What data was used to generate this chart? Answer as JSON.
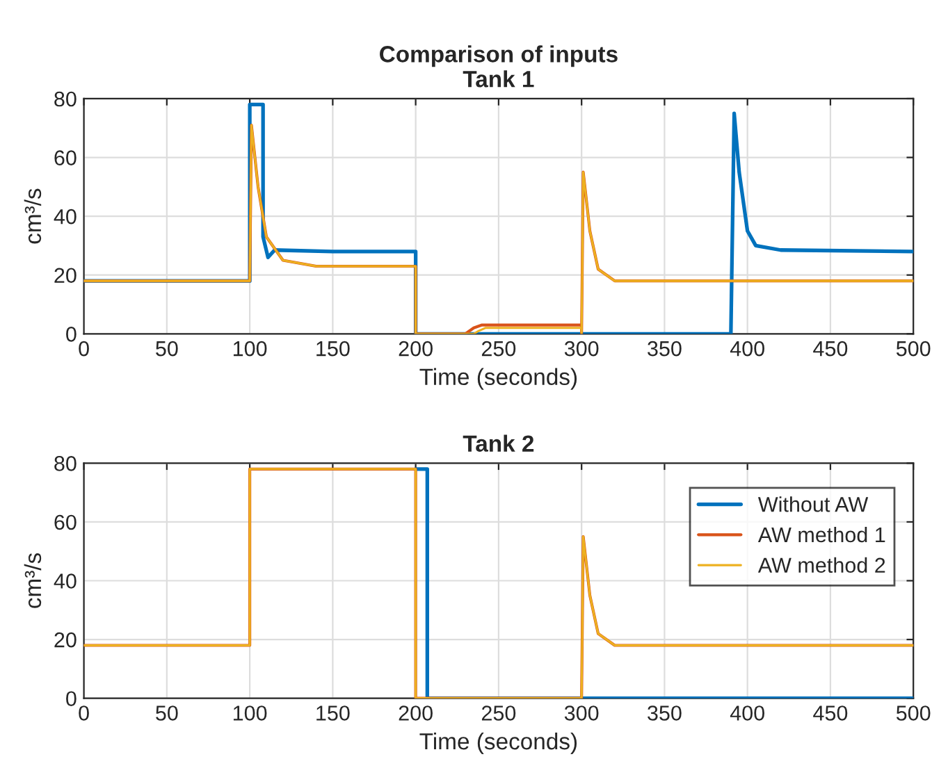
{
  "chart_data": [
    {
      "type": "line",
      "title": "Comparison of inputs",
      "subtitle": "Tank 1",
      "xlabel": "Time (seconds)",
      "ylabel": "cm³/s",
      "xlim": [
        0,
        500
      ],
      "ylim": [
        0,
        80
      ],
      "xticks": [
        0,
        50,
        100,
        150,
        200,
        250,
        300,
        350,
        400,
        450,
        500
      ],
      "yticks": [
        0,
        20,
        40,
        60,
        80
      ],
      "grid": true,
      "legend": false,
      "series": [
        {
          "color": "#0072bd",
          "x": [
            0,
            100,
            100,
            108,
            108,
            111,
            115,
            150,
            200,
            200,
            390,
            392,
            395,
            400,
            405,
            420,
            500
          ],
          "values": [
            18,
            18,
            78,
            78,
            33,
            26,
            28.5,
            28,
            28,
            0,
            0,
            75,
            55,
            35,
            30,
            28.5,
            28
          ]
        },
        {
          "color": "#d95319",
          "x": [
            0,
            100,
            101,
            105,
            110,
            120,
            140,
            200,
            200,
            230,
            235,
            240,
            300,
            300,
            301,
            305,
            310,
            320,
            500
          ],
          "values": [
            18,
            18,
            71,
            50,
            33,
            25,
            23,
            23,
            0,
            0,
            2,
            3,
            3,
            0,
            55,
            35,
            22,
            18,
            18
          ]
        },
        {
          "color": "#edb120",
          "x": [
            0,
            100,
            101,
            105,
            110,
            120,
            140,
            200,
            200,
            235,
            238,
            242,
            300,
            300,
            301,
            305,
            310,
            320,
            500
          ],
          "values": [
            18,
            18,
            71,
            50,
            33,
            25,
            23,
            23,
            0,
            0,
            1,
            2,
            2,
            0,
            55,
            35,
            22,
            18,
            18
          ]
        }
      ]
    },
    {
      "type": "line",
      "title": "Tank 2",
      "xlabel": "Time (seconds)",
      "ylabel": "cm³/s",
      "xlim": [
        0,
        500
      ],
      "ylim": [
        0,
        80
      ],
      "xticks": [
        0,
        50,
        100,
        150,
        200,
        250,
        300,
        350,
        400,
        450,
        500
      ],
      "yticks": [
        0,
        20,
        40,
        60,
        80
      ],
      "grid": true,
      "legend": "top right",
      "series": [
        {
          "name": "Without AW",
          "color": "#0072bd",
          "x": [
            200,
            207,
            207,
            300,
            500
          ],
          "values": [
            78,
            78,
            0,
            0,
            0
          ]
        },
        {
          "name": "AW method 1",
          "color": "#d95319",
          "x": [
            0,
            100,
            100,
            200,
            200,
            300,
            301,
            305,
            310,
            320,
            500
          ],
          "values": [
            18,
            18,
            78,
            78,
            0,
            0,
            55,
            35,
            22,
            18,
            18
          ]
        },
        {
          "name": "AW method 2",
          "color": "#edb120",
          "x": [
            0,
            100,
            100,
            200,
            200,
            300,
            301,
            305,
            310,
            320,
            500
          ],
          "values": [
            18,
            18,
            78,
            78,
            0,
            0,
            55,
            35,
            22,
            18,
            18
          ]
        }
      ]
    }
  ]
}
